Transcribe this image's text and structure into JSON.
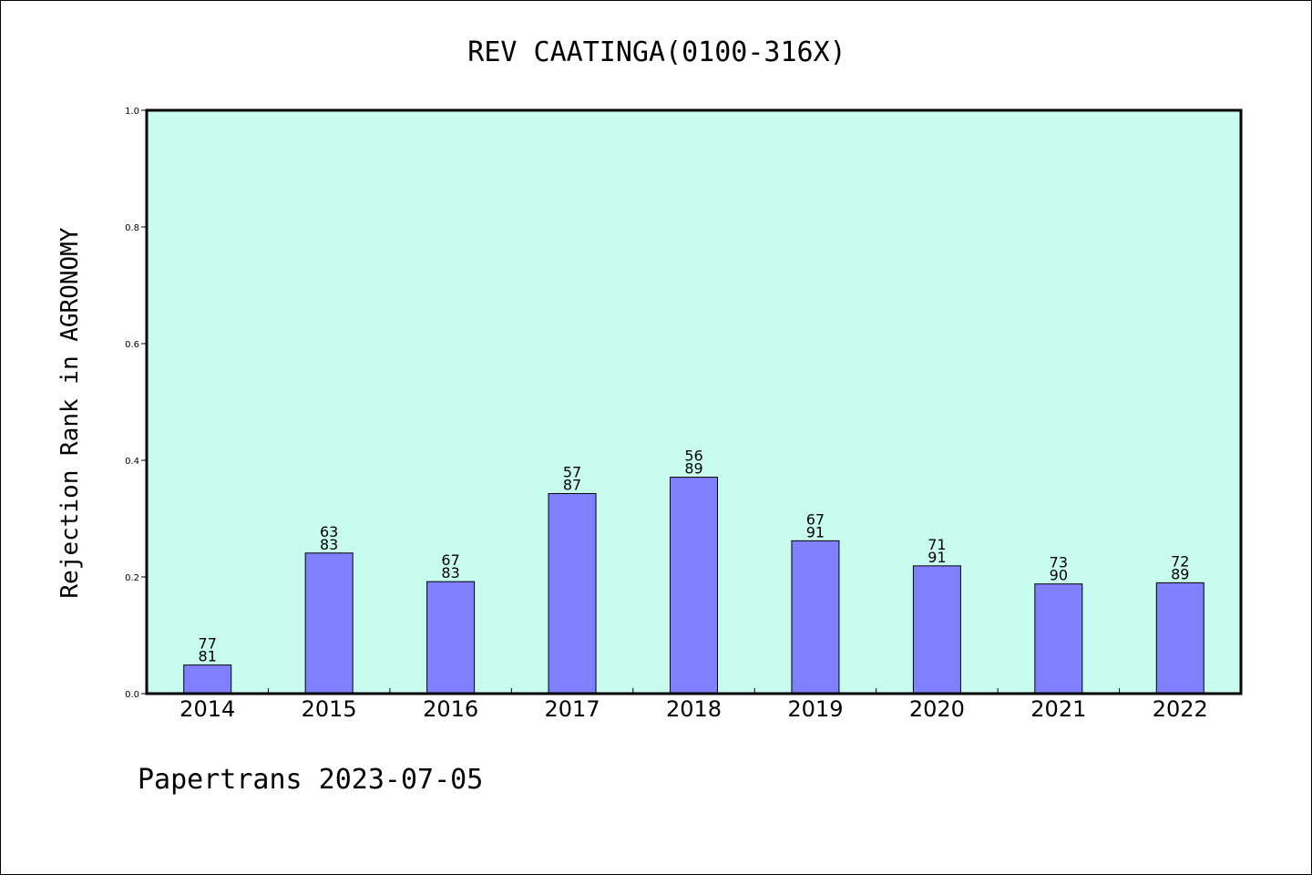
{
  "chart_data": {
    "type": "bar",
    "title": "REV CAATINGA(0100-316X)",
    "ylabel": "Rejection Rank in AGRONOMY",
    "xlabel": "",
    "ylim": [
      0,
      1.0
    ],
    "yticks": [
      "0.0",
      "0.2",
      "0.4",
      "0.6",
      "0.8",
      "1.0"
    ],
    "categories": [
      "2014",
      "2015",
      "2016",
      "2017",
      "2018",
      "2019",
      "2020",
      "2021",
      "2022"
    ],
    "values": [
      0.049,
      0.241,
      0.192,
      0.343,
      0.371,
      0.262,
      0.219,
      0.188,
      0.19
    ],
    "labels_top": [
      "77",
      "63",
      "67",
      "57",
      "56",
      "67",
      "71",
      "73",
      "72"
    ],
    "labels_bottom": [
      "81",
      "83",
      "83",
      "87",
      "89",
      "91",
      "91",
      "90",
      "89"
    ],
    "grid": false,
    "colors": {
      "plot_bg": "#c8fcee",
      "bar": "#8080ff",
      "edge": "#000000"
    }
  },
  "footer": "Papertrans 2023-07-05"
}
